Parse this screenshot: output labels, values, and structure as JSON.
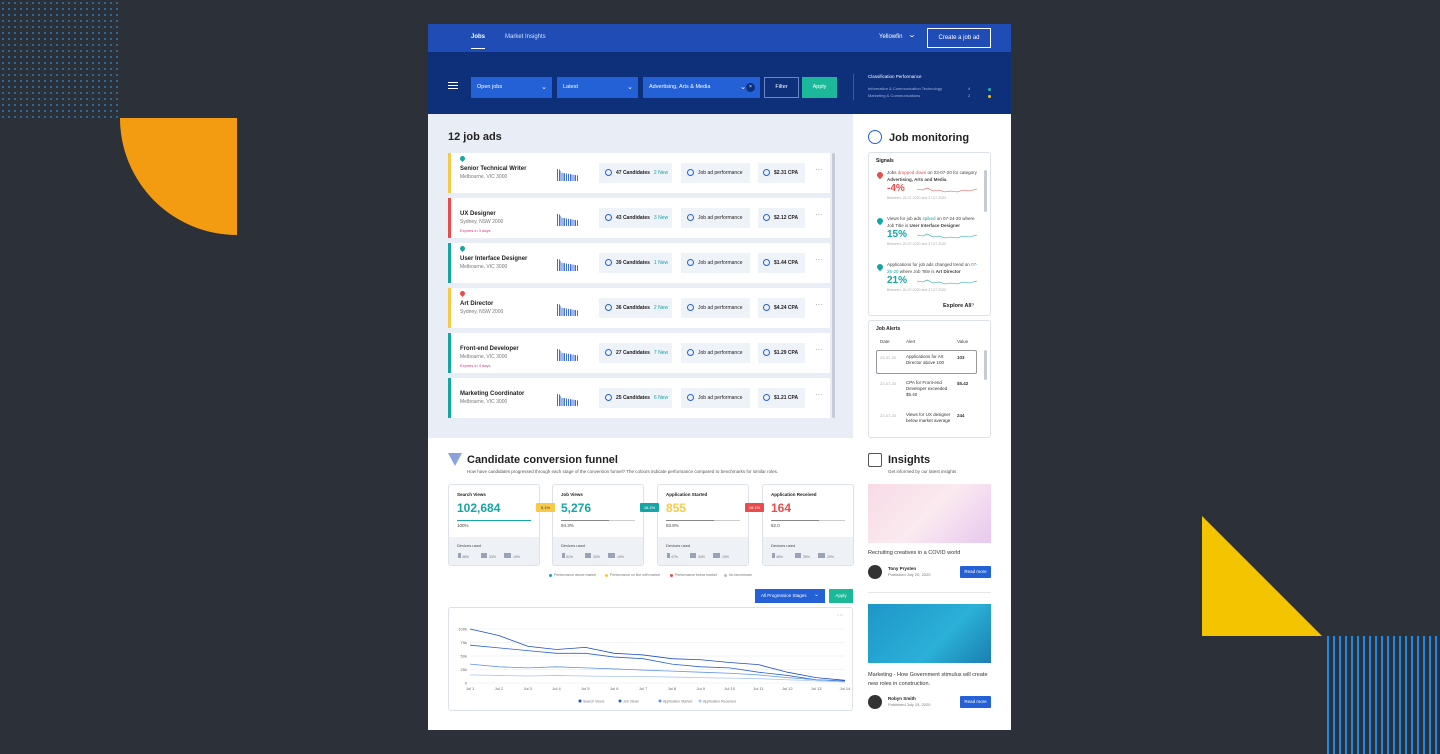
{
  "nav": {
    "tabs": [
      "Jobs",
      "Market Insights"
    ],
    "user": "Yellowfin",
    "create": "Create a job ad"
  },
  "filters": {
    "status": "Open jobs",
    "sort": "Latest",
    "classification": "Advertising, Arts & Media",
    "filter": "Filter",
    "apply": "Apply"
  },
  "classification_panel": {
    "title": "Classification Performance",
    "rows": [
      {
        "name": "Information & Communication Technology",
        "value": "4"
      },
      {
        "name": "Marketing & Communications",
        "value": "2"
      }
    ]
  },
  "jobs": {
    "title": "12 job ads",
    "items": [
      {
        "title": "Senior Technical Writer",
        "location": "Melbourne, VIC 3000",
        "candidates": "47 Candidates",
        "new": "2 New",
        "performance": "Job ad performance",
        "cpa": "$2.31 CPA"
      },
      {
        "title": "UX Designer",
        "location": "Sydney, NSW 2000",
        "note": "Expires in 3 days",
        "candidates": "43 Candidates",
        "new": "3 New",
        "performance": "Job ad performance",
        "cpa": "$2.12 CPA"
      },
      {
        "title": "User Interface Designer",
        "location": "Melbourne, VIC 3000",
        "candidates": "39 Candidates",
        "new": "1 New",
        "performance": "Job ad performance",
        "cpa": "$1.44 CPA"
      },
      {
        "title": "Art Director",
        "location": "Sydney, NSW 2000",
        "candidates": "36 Candidates",
        "new": "2 New",
        "performance": "Job ad performance",
        "cpa": "$4.24 CPA"
      },
      {
        "title": "Front-end Developer",
        "location": "Melbourne, VIC 3000",
        "note": "Expires in 4 days",
        "candidates": "27 Candidates",
        "new": "7 New",
        "performance": "Job ad performance",
        "cpa": "$1.29 CPA"
      },
      {
        "title": "Marketing Coordinator",
        "location": "Melbourne, VIC 3000",
        "candidates": "25 Candidates",
        "new": "6 New",
        "performance": "Job ad performance",
        "cpa": "$1.21 CPA"
      }
    ]
  },
  "monitoring": {
    "title": "Job monitoring",
    "signals_title": "Signals",
    "signals": [
      {
        "parts": [
          "Jobs ",
          "dropped down",
          " on 23-07-20 for category ",
          "Advertising, Arts and Media"
        ],
        "change": "-4%",
        "period": "Between: 23-07-2020 and 27-07-2020"
      },
      {
        "parts": [
          "Views for job ads ",
          "spiked",
          " on 07-24-20 where Job Title is ",
          "User Interface Designer"
        ],
        "change": "15%",
        "period": "Between: 20-07-2020 and 27-07-2020"
      },
      {
        "parts": [
          "Applications for job ads changed trend on ",
          "07-26-20",
          " where Job Title is ",
          "Art Director"
        ],
        "change": "21%",
        "period": "Between: 20-07-2020 and 27-07-2020"
      }
    ],
    "explore": "Explore All"
  },
  "alerts": {
    "title": "Job Alerts",
    "headers": [
      "Date",
      "Alert",
      "Value"
    ],
    "rows": [
      [
        "23-07-20",
        "Applications for Art Director above 100",
        "103"
      ],
      [
        "22-07-20",
        "CPA for Front-end Developer exceeded $5.40",
        "$5.42"
      ],
      [
        "22-07-20",
        "Views for UX designer below market average",
        "244"
      ]
    ]
  },
  "funnel": {
    "title": "Candidate conversion funnel",
    "subtitle": "How have candidates progressed through each stage of the conversion funnel? The colours indicate performance compared to benchmarks for similar roles.",
    "devices_label": "Devices used",
    "stages": [
      {
        "name": "Search Views",
        "value": "102,684",
        "percent": "100%",
        "devices": [
          "48%",
          "33%",
          "19%"
        ]
      },
      {
        "name": "Job Views",
        "value": "5,276",
        "percent": "94.3%",
        "devices": [
          "51%",
          "30%",
          "19%"
        ]
      },
      {
        "name": "Application Started",
        "value": "855",
        "percent": "83.8%",
        "devices": [
          "47%",
          "34%",
          "19%"
        ]
      },
      {
        "name": "Application Received",
        "value": "164",
        "percent": "82.0",
        "devices": [
          "45%",
          "35%",
          "20%"
        ]
      }
    ],
    "badges": [
      "5.1%",
      "16.2%",
      "19.1%"
    ],
    "legend": [
      "Performance above market",
      "Performance on line with market",
      "Performance below market",
      "No benchmark"
    ],
    "dropdown": "All Progression Stages",
    "apply": "Apply"
  },
  "chart_data": {
    "type": "line",
    "categories": [
      "Jul 1",
      "Jul 2",
      "Jul 3",
      "Jul 4",
      "Jul 5",
      "Jul 6",
      "Jul 7",
      "Jul 8",
      "Jul 9",
      "Jul 10",
      "Jul 11",
      "Jul 12",
      "Jul 13",
      "Jul 14"
    ],
    "ylim": [
      0,
      100000
    ],
    "yticks": [
      0,
      {
        "value": 25000,
        "label": "25k"
      },
      {
        "value": 50000,
        "label": "50k"
      },
      {
        "value": 75000,
        "label": "75k"
      },
      {
        "value": 100000,
        "label": "100k"
      }
    ],
    "grid": true,
    "series": [
      {
        "name": "Search Views",
        "color": "#1f4fc4",
        "values": [
          100000,
          88000,
          68000,
          62000,
          66000,
          55000,
          52000,
          45000,
          43000,
          38000,
          34000,
          20000,
          10000,
          5000
        ]
      },
      {
        "name": "Job Views",
        "color": "#2a62d8",
        "values": [
          70000,
          65000,
          60000,
          55000,
          55000,
          48000,
          45000,
          35000,
          30000,
          28000,
          20000,
          14000,
          6000,
          4000
        ]
      },
      {
        "name": "Application Started",
        "color": "#5f95e8",
        "values": [
          35000,
          30000,
          28000,
          30000,
          28000,
          26000,
          24000,
          22000,
          20000,
          18000,
          15000,
          10000,
          6000,
          3000
        ]
      },
      {
        "name": "Application Received",
        "color": "#a9c6f2",
        "values": [
          15000,
          14000,
          13000,
          14000,
          13000,
          12000,
          12000,
          11000,
          10000,
          9000,
          8000,
          6000,
          4000,
          2000
        ]
      }
    ]
  },
  "insights": {
    "title": "Insights",
    "subtitle": "Get informed by our latest insights",
    "articles": [
      {
        "caption": "Recruiting creatives in a COVID world",
        "author": "Tony Prysten",
        "date": "Published July 20, 2020",
        "button": "Read more"
      },
      {
        "caption": "Marketing - How Government stimulus will create new roles in construction.",
        "author": "Robyn Smith",
        "date": "Published July 15, 2020",
        "button": "Read more"
      }
    ]
  }
}
